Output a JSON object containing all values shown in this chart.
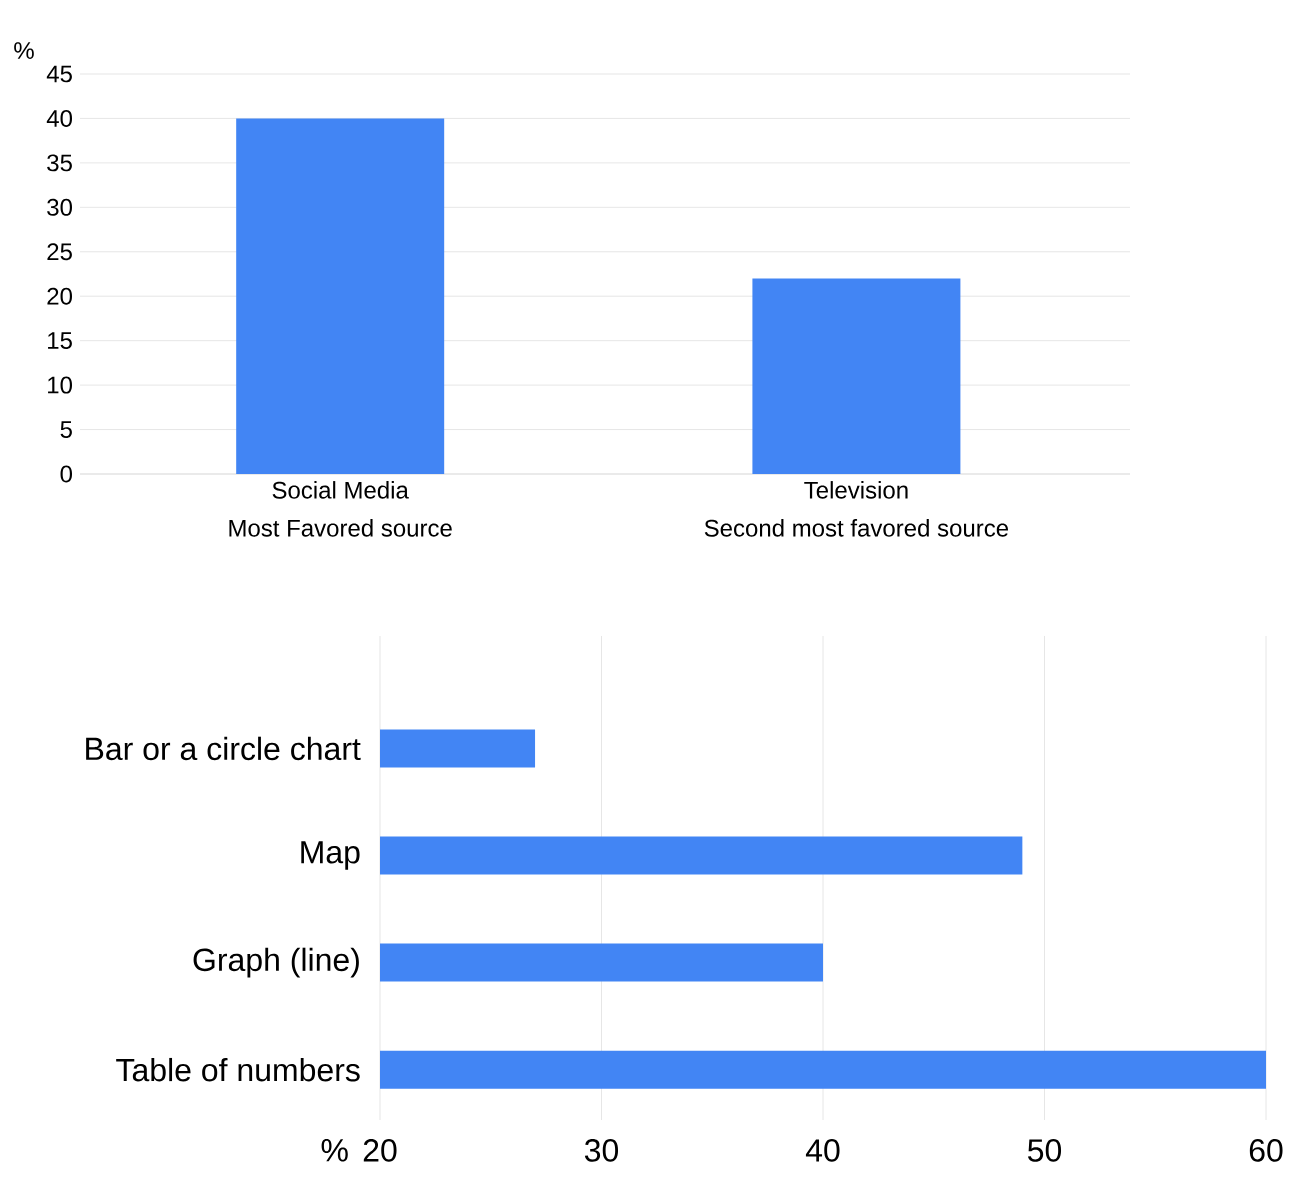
{
  "chart_data": [
    {
      "type": "bar",
      "ylabel": "%",
      "categories": [
        "Social Media",
        "Television"
      ],
      "annotations": [
        "Most Favored source",
        "Second most favored source"
      ],
      "values": [
        40,
        22
      ],
      "color": "#4285f4",
      "ylim": [
        0,
        45
      ],
      "yticks": [
        0,
        5,
        10,
        15,
        20,
        25,
        30,
        35,
        40,
        45
      ],
      "grid": "y"
    },
    {
      "type": "bar",
      "orientation": "horizontal",
      "xlabel": "%",
      "categories": [
        "Bar or a circle chart",
        "Map",
        "Graph (line)",
        "Table of numbers"
      ],
      "values": [
        27,
        49,
        40,
        60
      ],
      "color": "#4285f4",
      "xlim": [
        20,
        60
      ],
      "xticks": [
        20,
        30,
        40,
        50,
        60
      ],
      "grid": "x"
    }
  ]
}
